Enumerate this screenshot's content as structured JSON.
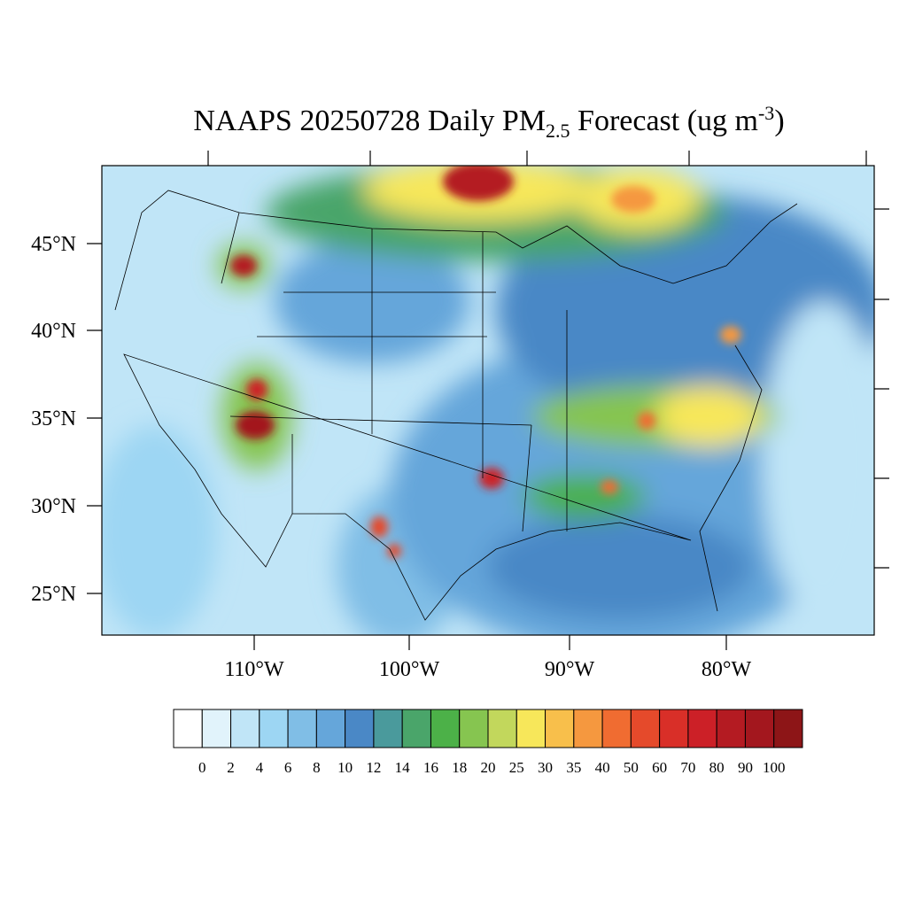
{
  "title": {
    "main": "NAAPS 20250728 Daily PM",
    "sub": "2.5",
    "mid": " Forecast (ug m",
    "sup": "-3",
    "end": ")"
  },
  "map": {
    "lat_labels": [
      "45°N",
      "40°N",
      "35°N",
      "30°N",
      "25°N"
    ],
    "lon_labels": [
      "110°W",
      "100°W",
      "90°W",
      "80°W"
    ]
  },
  "colorbar": {
    "levels": [
      0,
      2,
      4,
      6,
      8,
      10,
      12,
      14,
      16,
      18,
      20,
      25,
      30,
      35,
      40,
      50,
      60,
      70,
      80,
      90,
      100
    ],
    "colors": [
      "#ffffff",
      "#e1f3fb",
      "#c0e5f7",
      "#9dd6f3",
      "#80bee6",
      "#65a6da",
      "#4a88c6",
      "#4a9a9c",
      "#4aa56a",
      "#4cb148",
      "#86c550",
      "#c2d75c",
      "#f7e75a",
      "#f8bf4b",
      "#f5983f",
      "#f06c31",
      "#e54a2b",
      "#d92f28",
      "#cc2027",
      "#b41b22",
      "#a3171e",
      "#8d1517"
    ]
  }
}
